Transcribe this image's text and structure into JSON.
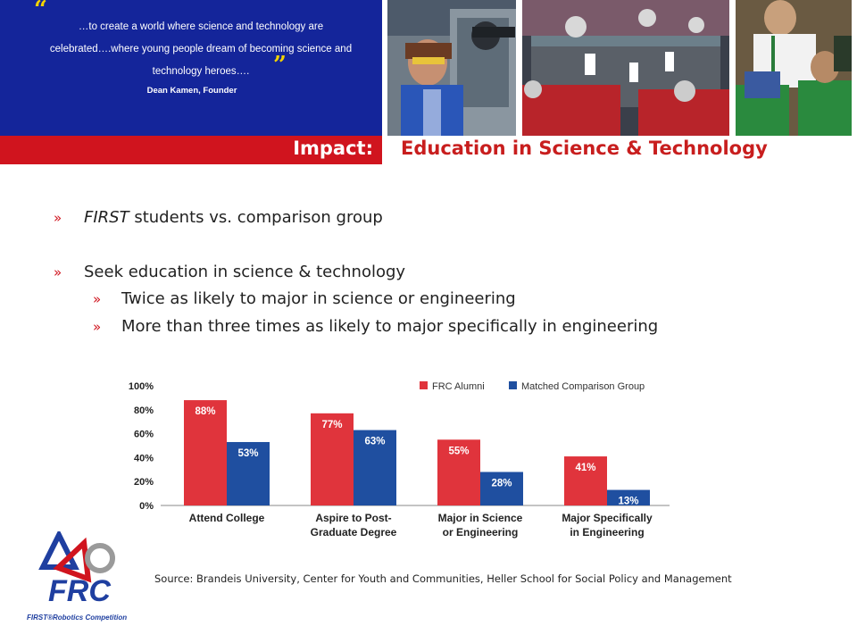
{
  "quote": {
    "text": "…to create a world where science and technology are celebrated….where young people dream of becoming science and technology heroes….",
    "author": "Dean Kamen, Founder"
  },
  "header": {
    "impact_label": "Impact:",
    "title": "Education in Science & Technology"
  },
  "bullets": [
    {
      "prefix": "FIRST",
      "text": " students vs. comparison group"
    },
    {
      "text": "Seek education in science & technology"
    }
  ],
  "sub_bullets": [
    "Twice as likely to major in science or engineering",
    "More than three times as likely to major specifically in engineering"
  ],
  "source": "Source: Brandeis University, Center for Youth and Communities, Heller School for Social Policy and Management",
  "logo": {
    "text": "FRC",
    "caption": "FIRST®Robotics Competition"
  },
  "colors": {
    "red": "#d0141e",
    "blue": "#14259a",
    "chart_red": "#e0343c",
    "chart_blue": "#1f4fa0",
    "quote_mark": "#f2d200"
  },
  "chart_data": {
    "type": "bar",
    "categories": [
      "Attend College",
      "Aspire to Post-\nGraduate Degree",
      "Major in Science\nor Engineering",
      "Major Specifically\nin Engineering"
    ],
    "series": [
      {
        "name": "FRC Alumni",
        "values": [
          88,
          77,
          55,
          41
        ],
        "labels": [
          "88%",
          "77%",
          "55%",
          "41%"
        ]
      },
      {
        "name": "Matched Comparison Group",
        "values": [
          53,
          63,
          28,
          13
        ],
        "labels": [
          "53%",
          "63%",
          "28%",
          "13%"
        ]
      }
    ],
    "ylim": [
      0,
      100
    ],
    "yticks": [
      "0%",
      "20%",
      "40%",
      "60%",
      "80%",
      "100%"
    ],
    "legend": "top-right",
    "grid": false
  }
}
